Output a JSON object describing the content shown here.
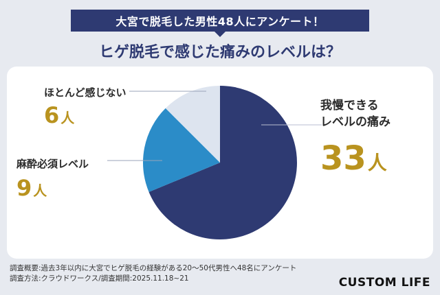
{
  "header": {
    "banner": "大宮で脱毛した男性48人にアンケート！",
    "title": "ヒゲ脱毛で感じた痛みのレベルは？"
  },
  "chart_data": {
    "type": "pie",
    "title": "ヒゲ脱毛で感じた痛みのレベルは？",
    "slices": [
      {
        "label": "我慢できるレベルの痛み",
        "label_lines": [
          "我慢できる",
          "レベルの痛み"
        ],
        "value": 33,
        "value_text": "33",
        "unit": "人",
        "color": "#2e3a72"
      },
      {
        "label": "麻酔必須レベル",
        "label_lines": [
          "麻酔必須レベル"
        ],
        "value": 9,
        "value_text": "9",
        "unit": "人",
        "color": "#2b8cc8"
      },
      {
        "label": "ほとんど感じない",
        "label_lines": [
          "ほとんど感じない"
        ],
        "value": 6,
        "value_text": "6",
        "unit": "人",
        "color": "#dde4ef"
      }
    ],
    "total": 48
  },
  "footnote": {
    "line1": "調査概要:過去3年以内に大宮でヒゲ脱毛の経験がある20〜50代男性へ48名にアンケート",
    "line2": "調査方法:クラウドワークス/調査期間:2025.11.18~21"
  },
  "brand": {
    "logo_text": "CUSTOM LIFE"
  }
}
